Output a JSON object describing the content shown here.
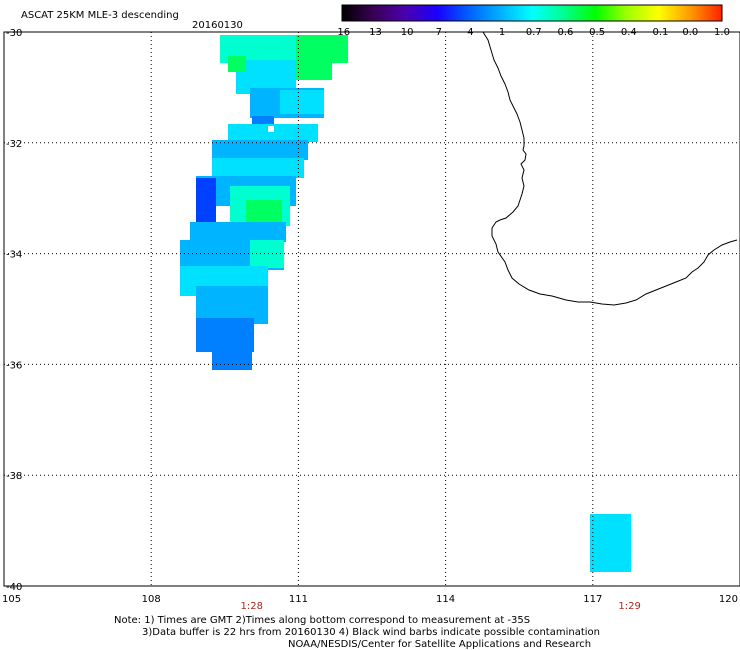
{
  "header": {
    "title": "ASCAT 25KM MLE-3 descending",
    "date": "20160130"
  },
  "colorbar": {
    "ticks": [
      "-16",
      "-13",
      "-10",
      "-7",
      "-4",
      "-1",
      "-0.7",
      "-0.6",
      "-0.5",
      "-0.4",
      "-0.1",
      "0.0",
      "1.0"
    ],
    "colors": [
      "#000000",
      "#3a0055",
      "#4a00b0",
      "#1a00ff",
      "#0060ff",
      "#00b0ff",
      "#00ffff",
      "#00ff90",
      "#00ff00",
      "#a0ff00",
      "#ffff00",
      "#ff9900",
      "#ff2000"
    ]
  },
  "axes": {
    "lat_labels": [
      "-30",
      "-32",
      "-34",
      "-36",
      "-38",
      "-40"
    ],
    "lon_labels": [
      "105",
      "108",
      "111",
      "114",
      "117",
      "120"
    ],
    "lat_range": [
      -40,
      -30
    ],
    "lon_range": [
      105,
      120
    ]
  },
  "pass_times": [
    {
      "label": "1:28",
      "lon": 110.05
    },
    {
      "label": "1:29",
      "lon": 117.75
    }
  ],
  "notes": {
    "line1": "Note: 1) Times are GMT 2)Times along bottom correspond to measurement at -35S",
    "line2": "3)Data buffer is 22 hrs from 20160130 4) Black wind barbs indicate possible contamination",
    "line3": "NOAA/NESDIS/Center for Satellite Applications and Research"
  },
  "swath_colors": {
    "light_cyan": "#00e0ff",
    "cyan_green": "#00ffd0",
    "green": "#00ff60",
    "sky": "#00b4ff",
    "blue": "#0080ff",
    "deep_blue": "#0040ff"
  }
}
